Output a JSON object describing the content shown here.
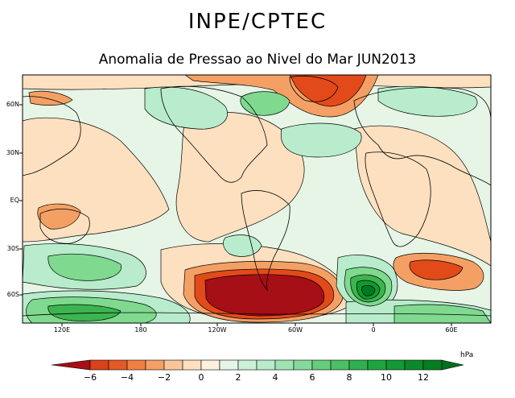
{
  "header": {
    "title": "INPE/CPTEC",
    "subtitle": "Anomalia de Pressao ao Nivel do Mar JUN2013"
  },
  "map": {
    "lat_labels": [
      "60N",
      "30N",
      "EQ",
      "30S",
      "60S"
    ],
    "lon_labels": [
      "120E",
      "180",
      "120W",
      "60W",
      "0",
      "60E"
    ],
    "colors": {
      "neg6": "#a50f15",
      "neg4": "#e34a1a",
      "neg2": "#f4a064",
      "zero_neg": "#fde0c0",
      "zero_pos": "#e6f5e6",
      "pos2": "#b8eccc",
      "pos4": "#7fd98f",
      "pos6": "#3cb550",
      "pos8": "#109a30",
      "pos10": "#007a20"
    }
  },
  "colorbar": {
    "unit": "hPa",
    "ticks": [
      "−6",
      "−4",
      "−2",
      "0",
      "2",
      "4",
      "6",
      "8",
      "10",
      "12"
    ],
    "colors": [
      "#a50f15",
      "#d8431a",
      "#f08040",
      "#f9c69a",
      "#fde0c0",
      "#e6f5e6",
      "#b8eccc",
      "#86d99a",
      "#4bbf63",
      "#1fa540",
      "#0b8a2a",
      "#006f1c"
    ]
  }
}
